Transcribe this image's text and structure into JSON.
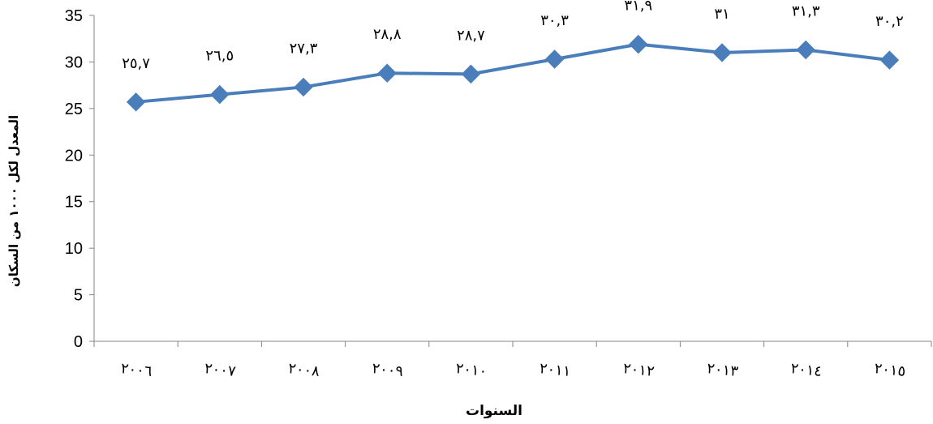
{
  "chart_data": {
    "type": "line",
    "xlabel": "السنوات",
    "ylabel": "المعدل لكل ١٠٠٠ من السكان",
    "ylim": [
      0,
      35
    ],
    "y_ticks": [
      "0",
      "5",
      "10",
      "15",
      "20",
      "25",
      "30",
      "35"
    ],
    "categories": [
      "٢٠٠٦",
      "٢٠٠٧",
      "٢٠٠٨",
      "٢٠٠٩",
      "٢٠١٠",
      "٢٠١١",
      "٢٠١٢",
      "٢٠١٣",
      "٢٠١٤",
      "٢٠١٥"
    ],
    "series": [
      {
        "values": [
          25.7,
          26.5,
          27.3,
          28.8,
          28.7,
          30.3,
          31.9,
          31,
          31.3,
          30.2
        ],
        "data_labels": [
          "٢٥,٧",
          "٢٦,٥",
          "٢٧,٣",
          "٢٨,٨",
          "٢٨,٧",
          "٣٠,٣",
          "٣١,٩",
          "٣١",
          "٣١,٣",
          "٣٠,٢"
        ],
        "color": "#4A7EBB",
        "marker": "diamond"
      }
    ],
    "grid": false,
    "legend": "none"
  }
}
